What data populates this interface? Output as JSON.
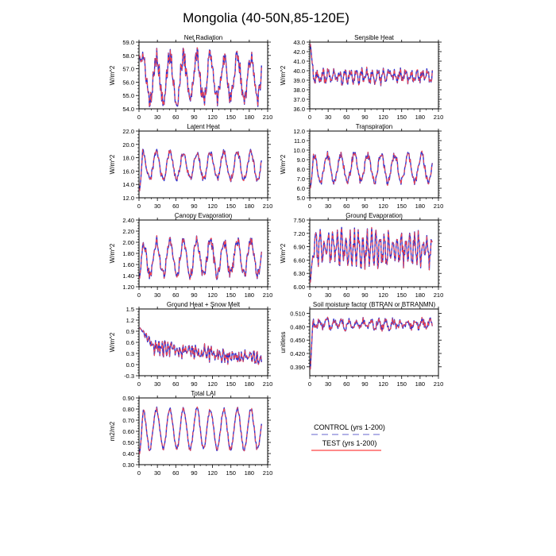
{
  "page": {
    "title": "Mongolia (40-50N,85-120E)"
  },
  "colors": {
    "control": "#3333cc",
    "test": "#ff4444",
    "axis": "#000000"
  },
  "legend": {
    "control_label": "CONTROL (yrs 1-200)",
    "test_label": "TEST (yrs 1-200)"
  },
  "chart_data": [
    {
      "type": "line",
      "title": "Net Radiation",
      "ylabel": "W/m^2",
      "xlim": [
        0,
        210
      ],
      "xticks": [
        "0",
        "30",
        "60",
        "90",
        "120",
        "150",
        "180",
        "210"
      ],
      "ylim": [
        54.0,
        59.0
      ],
      "yticks": [
        "54.0",
        "55.0",
        "56.0",
        "57.0",
        "58.0",
        "59.0"
      ],
      "generator": {
        "n": 200,
        "period": 22,
        "base": 56.3,
        "amp": 1.6,
        "noise": 0.7,
        "warm_start": 58.0,
        "warm_len": 6
      },
      "series": [
        {
          "name": "CONTROL (yrs 1-200)",
          "style": "dashed"
        },
        {
          "name": "TEST (yrs 1-200)",
          "style": "solid"
        }
      ]
    },
    {
      "type": "line",
      "title": "Sensible Heat",
      "ylabel": "W/m^2",
      "xlim": [
        0,
        210
      ],
      "xticks": [
        "0",
        "30",
        "60",
        "90",
        "120",
        "150",
        "180",
        "210"
      ],
      "ylim": [
        36.0,
        43.0
      ],
      "yticks": [
        "36.0",
        "37.0",
        "38.0",
        "39.0",
        "40.0",
        "41.0",
        "42.0",
        "43.0"
      ],
      "generator": {
        "n": 200,
        "period": 9,
        "base": 39.4,
        "amp": 0.5,
        "noise": 0.5,
        "warm_start": 42.8,
        "warm_len": 5
      },
      "series": [
        {
          "name": "CONTROL (yrs 1-200)",
          "style": "dashed"
        },
        {
          "name": "TEST (yrs 1-200)",
          "style": "solid"
        }
      ]
    },
    {
      "type": "line",
      "title": "Latent Heat",
      "ylabel": "W/m^2",
      "xlim": [
        0,
        210
      ],
      "xticks": [
        "0",
        "30",
        "60",
        "90",
        "120",
        "150",
        "180",
        "210"
      ],
      "ylim": [
        12.0,
        22.0
      ],
      "yticks": [
        "12.0",
        "14.0",
        "16.0",
        "18.0",
        "20.0",
        "22.0"
      ],
      "generator": {
        "n": 200,
        "period": 22,
        "base": 16.8,
        "amp": 2.0,
        "noise": 0.5,
        "warm_start": 13.0,
        "warm_len": 5
      },
      "series": [
        {
          "name": "CONTROL (yrs 1-200)",
          "style": "dashed"
        },
        {
          "name": "TEST (yrs 1-200)",
          "style": "solid"
        }
      ]
    },
    {
      "type": "line",
      "title": "Transpiration",
      "ylabel": "W/m^2",
      "xlim": [
        0,
        210
      ],
      "xticks": [
        "0",
        "30",
        "60",
        "90",
        "120",
        "150",
        "180",
        "210"
      ],
      "ylim": [
        5.0,
        12.0
      ],
      "yticks": [
        "5.0",
        "6.0",
        "7.0",
        "8.0",
        "9.0",
        "10.0",
        "11.0",
        "12.0"
      ],
      "generator": {
        "n": 200,
        "period": 22,
        "base": 8.1,
        "amp": 1.4,
        "noise": 0.4,
        "warm_start": 6.0,
        "warm_len": 5
      },
      "series": [
        {
          "name": "CONTROL (yrs 1-200)",
          "style": "dashed"
        },
        {
          "name": "TEST (yrs 1-200)",
          "style": "solid"
        }
      ]
    },
    {
      "type": "line",
      "title": "Canopy Evaporation",
      "ylabel": "W/m^2",
      "xlim": [
        0,
        210
      ],
      "xticks": [
        "0",
        "30",
        "60",
        "90",
        "120",
        "150",
        "180",
        "210"
      ],
      "ylim": [
        1.2,
        2.4
      ],
      "yticks": [
        "1.20",
        "1.40",
        "1.60",
        "1.80",
        "2.00",
        "2.20",
        "2.40"
      ],
      "generator": {
        "n": 200,
        "period": 22,
        "base": 1.72,
        "amp": 0.3,
        "noise": 0.1,
        "warm_start": 1.35,
        "warm_len": 5
      },
      "series": [
        {
          "name": "CONTROL (yrs 1-200)",
          "style": "dashed"
        },
        {
          "name": "TEST (yrs 1-200)",
          "style": "solid"
        }
      ]
    },
    {
      "type": "line",
      "title": "Ground Evaporation",
      "ylabel": "W/m^2",
      "xlim": [
        0,
        210
      ],
      "xticks": [
        "0",
        "30",
        "60",
        "90",
        "120",
        "150",
        "180",
        "210"
      ],
      "ylim": [
        6.0,
        7.5
      ],
      "yticks": [
        "6.00",
        "6.30",
        "6.60",
        "6.90",
        "7.20",
        "7.50"
      ],
      "generator": {
        "n": 200,
        "period": 7,
        "base": 6.85,
        "amp": 0.3,
        "noise": 0.2,
        "warm_start": 6.1,
        "warm_len": 5
      },
      "series": [
        {
          "name": "CONTROL (yrs 1-200)",
          "style": "dashed"
        },
        {
          "name": "TEST (yrs 1-200)",
          "style": "solid"
        }
      ]
    },
    {
      "type": "line",
      "title": "Ground Heat + Snow Melt",
      "ylabel": "W/m^2",
      "xlim": [
        0,
        210
      ],
      "xticks": [
        "0",
        "30",
        "60",
        "90",
        "120",
        "150",
        "180",
        "210"
      ],
      "ylim": [
        -0.3,
        1.5
      ],
      "yticks": [
        "-0.3",
        "0.0",
        "0.3",
        "0.6",
        "0.9",
        "1.2",
        "1.5"
      ],
      "generator": {
        "n": 200,
        "period": 5,
        "base": 0.5,
        "amp": 0.1,
        "noise": 0.15,
        "warm_start": 1.0,
        "warm_len": 25,
        "trend": -0.35
      },
      "series": [
        {
          "name": "CONTROL (yrs 1-200)",
          "style": "dashed"
        },
        {
          "name": "TEST (yrs 1-200)",
          "style": "solid"
        }
      ]
    },
    {
      "type": "line",
      "title": "Soil moisture factor (BTRAN or BTRANMN)",
      "ylabel": "unitless",
      "xlim": [
        0,
        210
      ],
      "xticks": [
        "0",
        "30",
        "60",
        "90",
        "120",
        "150",
        "180",
        "210"
      ],
      "ylim": [
        0.37,
        0.52
      ],
      "yticks": [
        "0.390",
        "0.420",
        "0.450",
        "0.480",
        "0.510"
      ],
      "generator": {
        "n": 200,
        "period": 12,
        "base": 0.486,
        "amp": 0.008,
        "noise": 0.008,
        "warm_start": 0.385,
        "warm_len": 4
      },
      "series": [
        {
          "name": "CONTROL (yrs 1-200)",
          "style": "dashed"
        },
        {
          "name": "TEST (yrs 1-200)",
          "style": "solid"
        }
      ]
    },
    {
      "type": "line",
      "title": "Total LAI",
      "ylabel": "m2/m2",
      "xlim": [
        0,
        210
      ],
      "xticks": [
        "0",
        "30",
        "60",
        "90",
        "120",
        "150",
        "180",
        "210"
      ],
      "ylim": [
        0.3,
        0.9
      ],
      "yticks": [
        "0.30",
        "0.40",
        "0.50",
        "0.60",
        "0.70",
        "0.80",
        "0.90"
      ],
      "generator": {
        "n": 200,
        "period": 22,
        "base": 0.62,
        "amp": 0.18,
        "noise": 0.02,
        "warm_start": 0.4,
        "warm_len": 6
      },
      "series": [
        {
          "name": "CONTROL (yrs 1-200)",
          "style": "dashed"
        },
        {
          "name": "TEST (yrs 1-200)",
          "style": "solid"
        }
      ]
    }
  ]
}
